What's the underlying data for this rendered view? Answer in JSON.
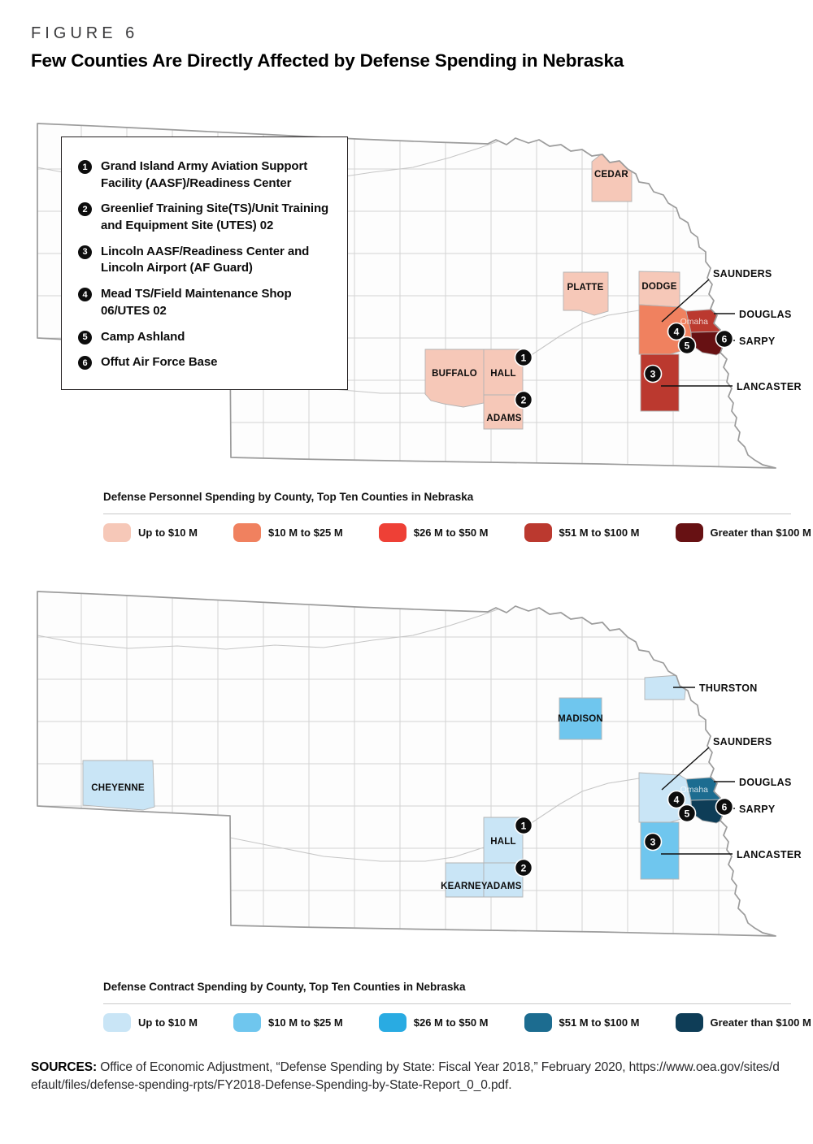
{
  "figure": {
    "eyebrow": "FIGURE 6",
    "title": "Few Counties Are Directly Affected by Defense Spending in Nebraska"
  },
  "site_key": {
    "items": [
      {
        "num": "1",
        "label": "Grand Island Army Aviation Support Facility (AASF)/Readiness Center"
      },
      {
        "num": "2",
        "label": "Greenlief Training Site(TS)/Unit Training and Equipment Site (UTES) 02"
      },
      {
        "num": "3",
        "label": "Lincoln AASF/Readiness Center and Lincoln Airport (AF Guard)"
      },
      {
        "num": "4",
        "label": "Mead TS/Field Maintenance Shop 06/UTES 02"
      },
      {
        "num": "5",
        "label": "Camp Ashland"
      },
      {
        "num": "6",
        "label": "Offut Air Force Base"
      }
    ]
  },
  "maps": {
    "personnel": {
      "section_label": "Defense Personnel Spending by County, Top Ten Counties in Nebraska",
      "palette": [
        "#f6c8b8",
        "#f0815f",
        "#ee4036",
        "#bb392f",
        "#671113"
      ],
      "legend": [
        "Up to $10 M",
        "$10 M to $25 M",
        "$26 M to $50 M",
        "$51 M to $100 M",
        "Greater than $100 M"
      ],
      "city": {
        "label": "Omaha"
      },
      "counties": [
        {
          "id": "cedar",
          "label": "CEDAR",
          "category": 0
        },
        {
          "id": "platte",
          "label": "PLATTE",
          "category": 0
        },
        {
          "id": "dodge",
          "label": "DODGE",
          "category": 0
        },
        {
          "id": "buffalo",
          "label": "BUFFALO",
          "category": 0
        },
        {
          "id": "hall",
          "label": "HALL",
          "category": 0
        },
        {
          "id": "adams",
          "label": "ADAMS",
          "category": 0
        },
        {
          "id": "saunders",
          "label": "",
          "category": 1
        },
        {
          "id": "douglas",
          "label": "",
          "category": 3
        },
        {
          "id": "lancaster",
          "label": "",
          "category": 3
        },
        {
          "id": "sarpy",
          "label": "",
          "category": 4
        }
      ],
      "callouts": [
        {
          "target": "saunders",
          "label": "SAUNDERS"
        },
        {
          "target": "douglas",
          "label": "DOUGLAS"
        },
        {
          "target": "sarpy",
          "label": "SARPY"
        },
        {
          "target": "lancaster",
          "label": "LANCASTER"
        }
      ],
      "markers": [
        "1",
        "2",
        "3",
        "4",
        "5",
        "6"
      ]
    },
    "contract": {
      "section_label": "Defense Contract Spending by County, Top Ten Counties in Nebraska",
      "palette": [
        "#c9e5f6",
        "#6fc6ee",
        "#29abe2",
        "#1c6c90",
        "#0e3d57"
      ],
      "legend": [
        "Up to $10 M",
        "$10 M to $25 M",
        "$26 M to $50 M",
        "$51 M to $100 M",
        "Greater than $100 M"
      ],
      "city": {
        "label": "Omaha"
      },
      "counties": [
        {
          "id": "cheyenne",
          "label": "CHEYENNE",
          "category": 0
        },
        {
          "id": "thurston",
          "label": "",
          "category": 0
        },
        {
          "id": "madison",
          "label": "MADISON",
          "category": 1
        },
        {
          "id": "saunders",
          "label": "",
          "category": 0
        },
        {
          "id": "hall",
          "label": "HALL",
          "category": 0
        },
        {
          "id": "kearney",
          "label": "KEARNEY",
          "category": 0
        },
        {
          "id": "adams",
          "label": "ADAMS",
          "category": 0
        },
        {
          "id": "lancaster",
          "label": "",
          "category": 1
        },
        {
          "id": "douglas",
          "label": "",
          "category": 3
        },
        {
          "id": "sarpy",
          "label": "",
          "category": 4
        }
      ],
      "callouts": [
        {
          "target": "thurston",
          "label": "THURSTON"
        },
        {
          "target": "saunders",
          "label": "SAUNDERS"
        },
        {
          "target": "douglas",
          "label": "DOUGLAS"
        },
        {
          "target": "sarpy",
          "label": "SARPY"
        },
        {
          "target": "lancaster",
          "label": "LANCASTER"
        }
      ],
      "markers": [
        "1",
        "2",
        "3",
        "4",
        "5",
        "6"
      ]
    }
  },
  "sources": {
    "label": "SOURCES:",
    "text": "Office of Economic Adjustment, “Defense Spending by State: Fiscal Year 2018,” February 2020, https://www.oea.gov/sites/default/files/defense-spending-rpts/FY2018-Defense-Spending-by-State-Report_0_0.pdf."
  },
  "chart_data": [
    {
      "type": "heatmap",
      "title": "Defense Personnel Spending by County, Top Ten Counties in Nebraska",
      "legend_bins": [
        "Up to $10 M",
        "$10 M to $25 M",
        "$26 M to $50 M",
        "$51 M to $100 M",
        "Greater than $100 M"
      ],
      "bin_colors": [
        "#f6c8b8",
        "#f0815f",
        "#ee4036",
        "#bb392f",
        "#671113"
      ],
      "counties": {
        "CEDAR": "Up to $10 M",
        "PLATTE": "Up to $10 M",
        "DODGE": "Up to $10 M",
        "BUFFALO": "Up to $10 M",
        "HALL": "Up to $10 M",
        "ADAMS": "Up to $10 M",
        "SAUNDERS": "$10 M to $25 M",
        "DOUGLAS": "$51 M to $100 M",
        "LANCASTER": "$51 M to $100 M",
        "SARPY": "Greater than $100 M"
      },
      "sites": [
        "Grand Island Army Aviation Support Facility (AASF)/Readiness Center",
        "Greenlief Training Site(TS)/Unit Training and Equipment Site (UTES) 02",
        "Lincoln AASF/Readiness Center and Lincoln Airport (AF Guard)",
        "Mead TS/Field Maintenance Shop 06/UTES 02",
        "Camp Ashland",
        "Offut Air Force Base"
      ],
      "city_marked": "Omaha"
    },
    {
      "type": "heatmap",
      "title": "Defense Contract Spending by County, Top Ten Counties in Nebraska",
      "legend_bins": [
        "Up to $10 M",
        "$10 M to $25 M",
        "$26 M to $50 M",
        "$51 M to $100 M",
        "Greater than $100 M"
      ],
      "bin_colors": [
        "#c9e5f6",
        "#6fc6ee",
        "#29abe2",
        "#1c6c90",
        "#0e3d57"
      ],
      "counties": {
        "CHEYENNE": "Up to $10 M",
        "THURSTON": "Up to $10 M",
        "SAUNDERS": "Up to $10 M",
        "HALL": "Up to $10 M",
        "KEARNEY": "Up to $10 M",
        "ADAMS": "Up to $10 M",
        "MADISON": "$10 M to $25 M",
        "LANCASTER": "$10 M to $25 M",
        "DOUGLAS": "$51 M to $100 M",
        "SARPY": "Greater than $100 M"
      },
      "city_marked": "Omaha"
    }
  ]
}
